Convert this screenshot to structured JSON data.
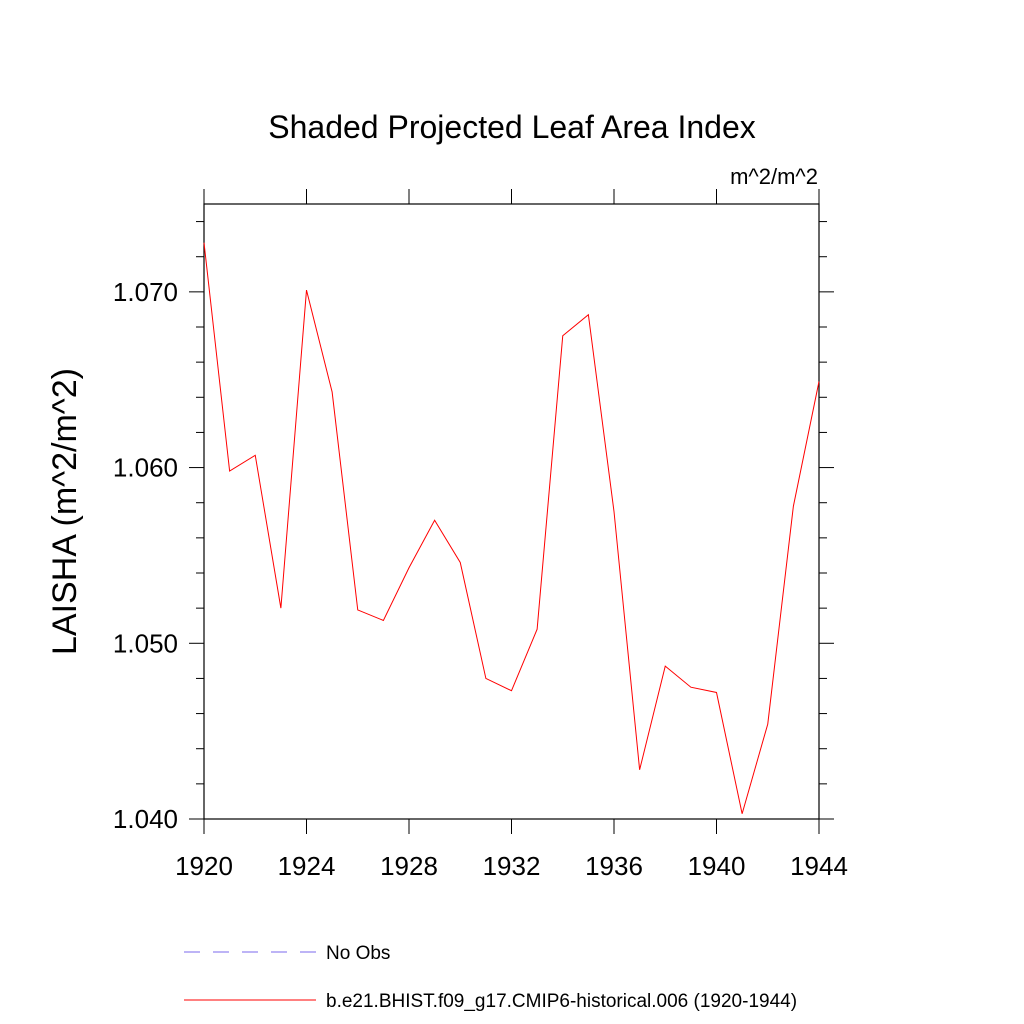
{
  "chart_data": {
    "type": "line",
    "title": "Shaded Projected Leaf Area Index",
    "units_label": "m^2/m^2",
    "ylabel": "LAISHA  (m^2/m^2)",
    "xlabel": "",
    "xlim": [
      1920,
      1944
    ],
    "ylim": [
      1.04,
      1.075
    ],
    "x_ticks": [
      1920,
      1924,
      1928,
      1932,
      1936,
      1940,
      1944
    ],
    "x_tick_labels": [
      "1920",
      "1924",
      "1928",
      "1932",
      "1936",
      "1940",
      "1944"
    ],
    "y_ticks": [
      1.04,
      1.05,
      1.06,
      1.07
    ],
    "y_tick_labels": [
      "1.040",
      "1.050",
      "1.060",
      "1.070"
    ],
    "grid": false,
    "legend_position": "bottom",
    "series": [
      {
        "name": "b.e21.BHIST.f09_g17.CMIP6-historical.006 (1920-1944)",
        "color": "#ff0000",
        "style": "solid",
        "x": [
          1920,
          1921,
          1922,
          1923,
          1924,
          1925,
          1926,
          1927,
          1928,
          1929,
          1930,
          1931,
          1932,
          1933,
          1934,
          1935,
          1936,
          1937,
          1938,
          1939,
          1940,
          1941,
          1942,
          1943,
          1944
        ],
        "y": [
          1.0728,
          1.0598,
          1.0607,
          1.052,
          1.0701,
          1.0643,
          1.0519,
          1.0513,
          1.0543,
          1.057,
          1.0546,
          1.048,
          1.0473,
          1.0508,
          1.0675,
          1.0687,
          1.0575,
          1.0428,
          1.0487,
          1.0475,
          1.0472,
          1.0403,
          1.0454,
          1.0578,
          1.0649
        ]
      }
    ],
    "legend": [
      {
        "name": "No Obs",
        "color": "#7b68ee",
        "style": "dashed"
      },
      {
        "name": "b.e21.BHIST.f09_g17.CMIP6-historical.006 (1920-1944)",
        "color": "#ff0000",
        "style": "solid"
      }
    ]
  }
}
